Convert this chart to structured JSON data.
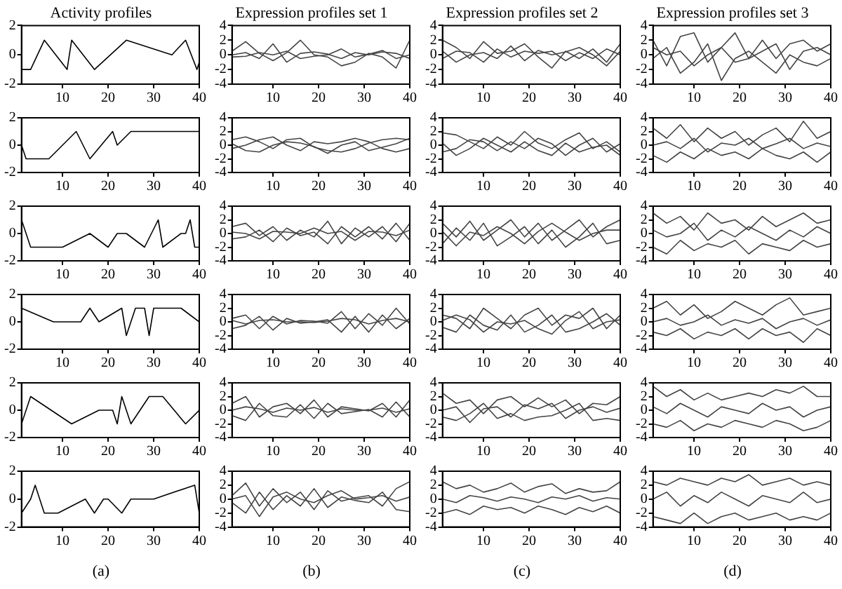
{
  "chart_data": [
    {
      "type": "line",
      "title": "Activity profiles",
      "x": [
        1,
        3,
        6,
        11,
        12,
        17,
        24,
        34,
        37,
        39.5,
        40
      ],
      "xlim": [
        1,
        40
      ],
      "xticks": [
        10,
        20,
        30,
        40
      ],
      "ylim": [
        -2,
        2
      ],
      "yticks": [
        -2,
        0,
        2
      ],
      "marker": "none",
      "line_style": "solid",
      "series": [
        {
          "color": "#000000",
          "values": [
            -1,
            -1,
            1,
            -1,
            1,
            -1,
            1,
            0,
            1,
            -1,
            -0.5
          ]
        }
      ]
    },
    {
      "type": "line",
      "title": "Expression profiles set 1",
      "x": [
        1,
        4,
        7,
        10,
        13,
        16,
        19,
        22,
        25,
        28,
        31,
        34,
        37,
        40
      ],
      "xlim": [
        1,
        40
      ],
      "xticks": [
        10,
        20,
        30,
        40
      ],
      "ylim": [
        -4,
        4
      ],
      "yticks": [
        -4,
        -2,
        0,
        2,
        4
      ],
      "marker": "none",
      "line_style": "solid",
      "series": [
        {
          "color": "#444444",
          "values": [
            0.5,
            1.8,
            0.2,
            -0.8,
            0.3,
            2,
            0,
            -0.3,
            -1.5,
            -1,
            0.2,
            -0.3,
            -1.8,
            2
          ]
        },
        {
          "color": "#444444",
          "values": [
            0,
            0.3,
            -0.5,
            1.5,
            -1,
            0.2,
            0.4,
            0.1,
            -0.5,
            0.3,
            0,
            0.4,
            0.2,
            -0.5
          ]
        },
        {
          "color": "#444444",
          "values": [
            -0.3,
            -0.2,
            0.3,
            0,
            0.5,
            -0.5,
            -0.2,
            0,
            0.8,
            -0.3,
            0.1,
            0.6,
            -0.5,
            0
          ]
        }
      ]
    },
    {
      "type": "line",
      "title": "Expression profiles set 2",
      "x": [
        1,
        4,
        7,
        10,
        13,
        16,
        19,
        22,
        25,
        28,
        31,
        34,
        37,
        40
      ],
      "xlim": [
        1,
        40
      ],
      "xticks": [
        10,
        20,
        30,
        40
      ],
      "ylim": [
        -4,
        4
      ],
      "yticks": [
        -4,
        -2,
        0,
        2,
        4
      ],
      "marker": "none",
      "line_style": "solid",
      "series": [
        {
          "color": "#444444",
          "values": [
            2,
            1,
            -0.5,
            1.8,
            0.2,
            0.5,
            1.5,
            -0.3,
            -1.8,
            0.5,
            -0.5,
            0.8,
            -1,
            1.5
          ]
        },
        {
          "color": "#444444",
          "values": [
            -0.5,
            0.5,
            0.3,
            -1,
            0.8,
            -0.3,
            0.5,
            0.2,
            0.5,
            -0.8,
            0.3,
            -0.5,
            0.8,
            0
          ]
        },
        {
          "color": "#444444",
          "values": [
            0.5,
            -1,
            0,
            0.3,
            -0.5,
            1.2,
            -0.8,
            0.6,
            0,
            0.4,
            1,
            0,
            -1.5,
            0.5
          ]
        }
      ]
    },
    {
      "type": "line",
      "title": "Expression profiles set 3",
      "x": [
        1,
        4,
        7,
        10,
        13,
        16,
        19,
        22,
        25,
        28,
        31,
        34,
        37,
        40
      ],
      "xlim": [
        1,
        40
      ],
      "xticks": [
        10,
        20,
        30,
        40
      ],
      "ylim": [
        -4,
        4
      ],
      "yticks": [
        -4,
        -2,
        0,
        2,
        4
      ],
      "marker": "none",
      "line_style": "solid",
      "series": [
        {
          "color": "#444444",
          "values": [
            2,
            -1.5,
            2.5,
            3,
            -1,
            1,
            3,
            -0.5,
            2,
            -0.5,
            1.5,
            2,
            0.5,
            1.5
          ]
        },
        {
          "color": "#444444",
          "values": [
            -0.5,
            1,
            -2.5,
            -1,
            1.5,
            -3.5,
            -0.5,
            0.5,
            -1,
            -2.5,
            0,
            -1,
            -1.5,
            -0.5
          ]
        },
        {
          "color": "#444444",
          "values": [
            1,
            0,
            0.5,
            -1.5,
            0,
            1,
            -1,
            -0.5,
            0.5,
            1.5,
            -2,
            0.5,
            1,
            0
          ]
        }
      ]
    },
    {
      "type": "line",
      "x": [
        1,
        2,
        7,
        13,
        16,
        21,
        22,
        25,
        40
      ],
      "xlim": [
        1,
        40
      ],
      "xticks": [
        10,
        20,
        30,
        40
      ],
      "ylim": [
        -2,
        2
      ],
      "yticks": [
        -2,
        0,
        2
      ],
      "marker": "none",
      "line_style": "solid",
      "series": [
        {
          "color": "#000000",
          "values": [
            0,
            -1,
            -1,
            1,
            -1,
            1,
            0,
            1,
            1
          ]
        }
      ]
    },
    {
      "type": "line",
      "x": [
        1,
        4,
        7,
        10,
        13,
        16,
        19,
        22,
        25,
        28,
        31,
        34,
        37,
        40
      ],
      "xlim": [
        1,
        40
      ],
      "xticks": [
        10,
        20,
        30,
        40
      ],
      "ylim": [
        -4,
        4
      ],
      "yticks": [
        -4,
        -2,
        0,
        2,
        4
      ],
      "marker": "none",
      "line_style": "solid",
      "series": [
        {
          "color": "#444444",
          "values": [
            0.8,
            1.2,
            0.5,
            -0.5,
            0.8,
            1,
            -0.3,
            -0.8,
            -1,
            -0.5,
            0.3,
            0.8,
            1,
            0.8
          ]
        },
        {
          "color": "#444444",
          "values": [
            -0.5,
            0,
            0.8,
            1.2,
            0,
            -0.8,
            0.5,
            0.2,
            0.5,
            1,
            0.5,
            -0.5,
            -1,
            -0.5
          ]
        },
        {
          "color": "#444444",
          "values": [
            0.2,
            -0.8,
            -1,
            0,
            0.5,
            0.3,
            -0.2,
            -1.2,
            0,
            0.5,
            -0.8,
            -0.3,
            0.2,
            1
          ]
        }
      ]
    },
    {
      "type": "line",
      "x": [
        1,
        4,
        7,
        10,
        13,
        16,
        19,
        22,
        25,
        28,
        31,
        34,
        37,
        40
      ],
      "xlim": [
        1,
        40
      ],
      "xticks": [
        10,
        20,
        30,
        40
      ],
      "ylim": [
        -4,
        4
      ],
      "yticks": [
        -4,
        -2,
        0,
        2,
        4
      ],
      "marker": "none",
      "line_style": "solid",
      "series": [
        {
          "color": "#444444",
          "values": [
            1.8,
            1.5,
            0.5,
            -0.5,
            1.2,
            0,
            2,
            0.3,
            -0.5,
            0.8,
            1.8,
            -0.5,
            0.5,
            -1
          ]
        },
        {
          "color": "#444444",
          "values": [
            -1,
            -0.5,
            0.8,
            0.5,
            -0.8,
            0.5,
            -0.5,
            1,
            0.2,
            -1.5,
            0,
            1,
            -1,
            0.2
          ]
        },
        {
          "color": "#444444",
          "values": [
            0.3,
            -1.5,
            -0.5,
            1,
            0,
            -1,
            0.5,
            -0.8,
            -1.5,
            0.3,
            -1,
            -0.3,
            0,
            -1.5
          ]
        }
      ]
    },
    {
      "type": "line",
      "x": [
        1,
        4,
        7,
        10,
        13,
        16,
        19,
        22,
        25,
        28,
        31,
        34,
        37,
        40
      ],
      "xlim": [
        1,
        40
      ],
      "xticks": [
        10,
        20,
        30,
        40
      ],
      "ylim": [
        -4,
        4
      ],
      "yticks": [
        -4,
        -2,
        0,
        2,
        4
      ],
      "marker": "none",
      "line_style": "solid",
      "series": [
        {
          "color": "#444444",
          "values": [
            2.5,
            1,
            3,
            0.5,
            2.5,
            1,
            2,
            0,
            1.5,
            2.5,
            0.5,
            3.5,
            1,
            2
          ]
        },
        {
          "color": "#444444",
          "values": [
            -1.5,
            -2.5,
            -1,
            -2,
            -0.5,
            -1.5,
            -1,
            -2,
            -0.5,
            -1.5,
            -2,
            -1,
            -2.5,
            -1
          ]
        },
        {
          "color": "#444444",
          "values": [
            0,
            0.5,
            -0.5,
            1,
            -1,
            0.3,
            0,
            1,
            -0.5,
            0.2,
            1,
            -0.5,
            0.3,
            -0.2
          ]
        }
      ]
    },
    {
      "type": "line",
      "x": [
        1,
        3,
        10,
        16,
        20,
        22,
        24,
        28,
        31,
        32,
        36,
        37,
        38,
        39,
        40
      ],
      "xlim": [
        1,
        40
      ],
      "xticks": [
        10,
        20,
        30,
        40
      ],
      "ylim": [
        -2,
        2
      ],
      "yticks": [
        -2,
        0,
        2
      ],
      "marker": "none",
      "line_style": "solid",
      "series": [
        {
          "color": "#000000",
          "values": [
            1,
            -1,
            -1,
            0,
            -1,
            0,
            0,
            -1,
            1,
            -1,
            0,
            0,
            1,
            -1,
            -1
          ]
        }
      ]
    },
    {
      "type": "line",
      "x": [
        1,
        4,
        7,
        10,
        13,
        16,
        19,
        22,
        25,
        28,
        31,
        34,
        37,
        40
      ],
      "xlim": [
        1,
        40
      ],
      "xticks": [
        10,
        20,
        30,
        40
      ],
      "ylim": [
        -4,
        4
      ],
      "yticks": [
        -4,
        -2,
        0,
        2,
        4
      ],
      "marker": "none",
      "line_style": "solid",
      "series": [
        {
          "color": "#444444",
          "values": [
            1,
            1.5,
            -0.3,
            1,
            -1,
            0.5,
            -0.5,
            1.8,
            -1.5,
            0.8,
            -0.5,
            1,
            -1.2,
            1.5
          ]
        },
        {
          "color": "#444444",
          "values": [
            -0.8,
            -0.5,
            0.5,
            -1.2,
            0.8,
            -0.3,
            0.2,
            -1.5,
            1,
            -0.5,
            1,
            -0.8,
            1.5,
            -1
          ]
        },
        {
          "color": "#444444",
          "values": [
            0.2,
            0,
            -0.8,
            0.3,
            0.2,
            0,
            0.8,
            0,
            0.3,
            -1,
            0.3,
            0.2,
            -0.3,
            0.5
          ]
        }
      ]
    },
    {
      "type": "line",
      "x": [
        1,
        4,
        7,
        10,
        13,
        16,
        19,
        22,
        25,
        28,
        31,
        34,
        37,
        40
      ],
      "xlim": [
        1,
        40
      ],
      "xticks": [
        10,
        20,
        30,
        40
      ],
      "ylim": [
        -4,
        4
      ],
      "yticks": [
        -4,
        -2,
        0,
        2,
        4
      ],
      "marker": "none",
      "line_style": "solid",
      "series": [
        {
          "color": "#444444",
          "values": [
            1.5,
            -0.5,
            1.8,
            -1,
            0.5,
            2,
            -0.5,
            1.5,
            -1,
            0.5,
            2,
            -0.5,
            1,
            2
          ]
        },
        {
          "color": "#444444",
          "values": [
            -1.5,
            0.8,
            -1,
            1.5,
            -1.8,
            -0.5,
            1,
            -1.5,
            0.5,
            -2,
            -0.5,
            1.5,
            -1.5,
            -1
          ]
        },
        {
          "color": "#444444",
          "values": [
            0.3,
            -1.8,
            0.2,
            -0.3,
            1,
            0,
            -1.5,
            0.3,
            1.5,
            0.2,
            -1,
            0,
            0.5,
            0.5
          ]
        }
      ]
    },
    {
      "type": "line",
      "x": [
        1,
        4,
        7,
        10,
        13,
        16,
        19,
        22,
        25,
        28,
        31,
        34,
        37,
        40
      ],
      "xlim": [
        1,
        40
      ],
      "xticks": [
        10,
        20,
        30,
        40
      ],
      "ylim": [
        -4,
        4
      ],
      "yticks": [
        -4,
        -2,
        0,
        2,
        4
      ],
      "marker": "none",
      "line_style": "solid",
      "series": [
        {
          "color": "#444444",
          "values": [
            3,
            1.5,
            2.5,
            0.5,
            3,
            1.5,
            2,
            0.5,
            2.5,
            1,
            2,
            3,
            1.5,
            2
          ]
        },
        {
          "color": "#444444",
          "values": [
            -2,
            -3,
            -1,
            -2.5,
            -1.5,
            -2,
            -1,
            -3,
            -1.5,
            -2,
            -2.5,
            -1,
            -2,
            -1.5
          ]
        },
        {
          "color": "#444444",
          "values": [
            0.5,
            -0.5,
            0,
            1.5,
            -1,
            0.5,
            -0.5,
            1,
            0,
            -1,
            0.5,
            -0.5,
            1,
            0
          ]
        }
      ]
    },
    {
      "type": "line",
      "x": [
        1,
        8,
        14,
        16,
        18,
        23,
        24,
        26,
        28,
        29,
        30,
        36,
        40
      ],
      "xlim": [
        1,
        40
      ],
      "xticks": [
        10,
        20,
        30,
        40
      ],
      "ylim": [
        -2,
        2
      ],
      "yticks": [
        -2,
        0,
        2
      ],
      "marker": "none",
      "line_style": "solid",
      "series": [
        {
          "color": "#000000",
          "values": [
            1,
            0,
            0,
            1,
            0,
            1,
            -1,
            1,
            1,
            -1,
            1,
            1,
            0
          ]
        }
      ]
    },
    {
      "type": "line",
      "x": [
        1,
        4,
        7,
        10,
        13,
        16,
        19,
        22,
        25,
        28,
        31,
        34,
        37,
        40
      ],
      "xlim": [
        1,
        40
      ],
      "xticks": [
        10,
        20,
        30,
        40
      ],
      "ylim": [
        -4,
        4
      ],
      "yticks": [
        -4,
        -2,
        0,
        2,
        4
      ],
      "marker": "none",
      "line_style": "solid",
      "series": [
        {
          "color": "#444444",
          "values": [
            0.5,
            1,
            -1,
            0.8,
            -0.3,
            0.2,
            0.1,
            -0.2,
            1.5,
            -1,
            1.2,
            -0.5,
            2,
            -0.3
          ]
        },
        {
          "color": "#444444",
          "values": [
            -1,
            -0.5,
            0.8,
            -1.2,
            0.5,
            -0.2,
            0,
            0.3,
            -1.5,
            0.8,
            -1.5,
            1,
            -1,
            0.5
          ]
        },
        {
          "color": "#444444",
          "values": [
            0.2,
            -0.3,
            0.2,
            0.3,
            0,
            0,
            -0.1,
            0.1,
            0.5,
            0.3,
            -0.3,
            0.2,
            0.5,
            0
          ]
        }
      ]
    },
    {
      "type": "line",
      "x": [
        1,
        4,
        7,
        10,
        13,
        16,
        19,
        22,
        25,
        28,
        31,
        34,
        37,
        40
      ],
      "xlim": [
        1,
        40
      ],
      "xticks": [
        10,
        20,
        30,
        40
      ],
      "ylim": [
        -4,
        4
      ],
      "yticks": [
        -4,
        -2,
        0,
        2,
        4
      ],
      "marker": "none",
      "line_style": "solid",
      "series": [
        {
          "color": "#444444",
          "values": [
            1,
            0.5,
            -1,
            2,
            0.5,
            -1,
            1,
            2,
            -0.5,
            1,
            0.5,
            2,
            -1,
            1
          ]
        },
        {
          "color": "#444444",
          "values": [
            -0.8,
            -1.5,
            1,
            -0.5,
            -1.2,
            1,
            -1.5,
            -0.5,
            1,
            -1.5,
            -1,
            0,
            1.2,
            -0.5
          ]
        },
        {
          "color": "#444444",
          "values": [
            0.2,
            1,
            0.3,
            -1.5,
            0,
            -0.3,
            0.2,
            -1,
            -1.8,
            0.2,
            1.5,
            -1,
            0,
            0.3
          ]
        }
      ]
    },
    {
      "type": "line",
      "x": [
        1,
        4,
        7,
        10,
        13,
        16,
        19,
        22,
        25,
        28,
        31,
        34,
        37,
        40
      ],
      "xlim": [
        1,
        40
      ],
      "xticks": [
        10,
        20,
        30,
        40
      ],
      "ylim": [
        -4,
        4
      ],
      "yticks": [
        -4,
        -2,
        0,
        2,
        4
      ],
      "marker": "none",
      "line_style": "solid",
      "series": [
        {
          "color": "#444444",
          "values": [
            2,
            3,
            1,
            2.5,
            0.5,
            1.5,
            3,
            2,
            1,
            2.5,
            3.5,
            1,
            1.5,
            2
          ]
        },
        {
          "color": "#444444",
          "values": [
            -1.5,
            -2,
            -1,
            -2.5,
            -1.5,
            -2,
            -1,
            -2.5,
            -1,
            -2,
            -1.5,
            -3,
            -1,
            -2
          ]
        },
        {
          "color": "#444444",
          "values": [
            0,
            0.5,
            -0.5,
            0,
            1,
            -0.5,
            0.3,
            -0.2,
            0.5,
            -1,
            0,
            0.5,
            -0.5,
            0.3
          ]
        }
      ]
    },
    {
      "type": "line",
      "x": [
        1,
        3,
        12,
        18,
        21,
        22,
        23,
        25,
        29,
        32,
        37,
        40
      ],
      "xlim": [
        1,
        40
      ],
      "xticks": [
        10,
        20,
        30,
        40
      ],
      "ylim": [
        -2,
        2
      ],
      "yticks": [
        -2,
        0,
        2
      ],
      "marker": "none",
      "line_style": "solid",
      "series": [
        {
          "color": "#000000",
          "values": [
            -1,
            1,
            -1,
            0,
            0,
            -1,
            1,
            -1,
            1,
            1,
            -1,
            0
          ]
        }
      ]
    },
    {
      "type": "line",
      "x": [
        1,
        4,
        7,
        10,
        13,
        16,
        19,
        22,
        25,
        28,
        31,
        34,
        37,
        40
      ],
      "xlim": [
        1,
        40
      ],
      "xticks": [
        10,
        20,
        30,
        40
      ],
      "ylim": [
        -4,
        4
      ],
      "yticks": [
        -4,
        -2,
        0,
        2,
        4
      ],
      "marker": "none",
      "line_style": "solid",
      "series": [
        {
          "color": "#444444",
          "values": [
            1,
            2,
            -1,
            0.5,
            1,
            -0.5,
            1.5,
            -1,
            0.5,
            0.2,
            -0.1,
            1,
            -1,
            1.5
          ]
        },
        {
          "color": "#444444",
          "values": [
            -0.8,
            -1.5,
            1,
            -0.8,
            -1,
            0.8,
            -1.2,
            1,
            -0.5,
            -0.2,
            0.1,
            -1,
            1.2,
            -1
          ]
        },
        {
          "color": "#444444",
          "values": [
            0,
            0.5,
            0.2,
            -0.3,
            0.3,
            0,
            0.4,
            -0.3,
            0.2,
            0,
            0,
            0.3,
            -0.3,
            0.2
          ]
        }
      ]
    },
    {
      "type": "line",
      "x": [
        1,
        4,
        7,
        10,
        13,
        16,
        19,
        22,
        25,
        28,
        31,
        34,
        37,
        40
      ],
      "xlim": [
        1,
        40
      ],
      "xticks": [
        10,
        20,
        30,
        40
      ],
      "ylim": [
        -4,
        4
      ],
      "yticks": [
        -4,
        -2,
        0,
        2,
        4
      ],
      "marker": "none",
      "line_style": "solid",
      "series": [
        {
          "color": "#444444",
          "values": [
            2.5,
            1,
            1.5,
            -0.5,
            1.5,
            2,
            0.5,
            1.8,
            0.5,
            1.5,
            -0.5,
            1,
            0.8,
            2
          ]
        },
        {
          "color": "#444444",
          "values": [
            -1,
            -1.5,
            -0.5,
            1,
            -1.2,
            -0.5,
            -1.5,
            -1,
            -0.8,
            0,
            1,
            -1.5,
            -1.2,
            -1.5
          ]
        },
        {
          "color": "#444444",
          "values": [
            0,
            0.5,
            -1.8,
            0.2,
            0.5,
            -1,
            0.8,
            0.2,
            1,
            -1.2,
            0,
            0.5,
            -0.3,
            0.3
          ]
        }
      ]
    },
    {
      "type": "line",
      "x": [
        1,
        4,
        7,
        10,
        13,
        16,
        19,
        22,
        25,
        28,
        31,
        34,
        37,
        40
      ],
      "xlim": [
        1,
        40
      ],
      "xticks": [
        10,
        20,
        30,
        40
      ],
      "ylim": [
        -4,
        4
      ],
      "yticks": [
        -4,
        -2,
        0,
        2,
        4
      ],
      "marker": "none",
      "line_style": "solid",
      "series": [
        {
          "color": "#444444",
          "values": [
            3.5,
            2,
            3,
            1.5,
            2.5,
            1.5,
            2,
            2.5,
            2,
            3,
            2.5,
            3.5,
            2,
            2
          ]
        },
        {
          "color": "#444444",
          "values": [
            -2,
            -2.5,
            -1.5,
            -3,
            -2,
            -2.5,
            -1.5,
            -2,
            -2.5,
            -1.5,
            -2,
            -3,
            -2.5,
            -1.5
          ]
        },
        {
          "color": "#444444",
          "values": [
            0.5,
            -0.5,
            1,
            0,
            -1,
            0.5,
            0,
            -0.5,
            1,
            0,
            0.5,
            -1,
            0,
            0.5
          ]
        }
      ]
    },
    {
      "type": "line",
      "annotations": [
        "(a)"
      ],
      "x": [
        1,
        3,
        4,
        6,
        9,
        15,
        17,
        19,
        20,
        23,
        25,
        30,
        39,
        40
      ],
      "xlim": [
        1,
        40
      ],
      "xticks": [
        10,
        20,
        30,
        40
      ],
      "ylim": [
        -2,
        2
      ],
      "yticks": [
        -2,
        0,
        2
      ],
      "marker": "none",
      "line_style": "solid",
      "series": [
        {
          "color": "#000000",
          "values": [
            -1,
            0,
            1,
            -1,
            -1,
            0,
            -1,
            0,
            0,
            -1,
            0,
            0,
            1,
            -1
          ]
        }
      ]
    },
    {
      "type": "line",
      "annotations": [
        "(b)"
      ],
      "x": [
        1,
        4,
        7,
        10,
        13,
        16,
        19,
        22,
        25,
        28,
        31,
        34,
        37,
        40
      ],
      "xlim": [
        1,
        40
      ],
      "xticks": [
        10,
        20,
        30,
        40
      ],
      "ylim": [
        -4,
        4
      ],
      "yticks": [
        -4,
        -2,
        0,
        2,
        4
      ],
      "marker": "none",
      "line_style": "solid",
      "series": [
        {
          "color": "#444444",
          "values": [
            0.5,
            2.3,
            -1,
            1.5,
            -0.5,
            1,
            -1.5,
            1.2,
            -0.3,
            0.2,
            0.5,
            -1,
            1.5,
            2.5
          ]
        },
        {
          "color": "#444444",
          "values": [
            -0.5,
            -2,
            1,
            -1.5,
            0.5,
            -1,
            1.5,
            -1.2,
            0.3,
            -0.2,
            -0.5,
            1,
            -1.5,
            -1.8
          ]
        },
        {
          "color": "#444444",
          "values": [
            0,
            0.5,
            -2.5,
            0.3,
            1,
            0,
            -0.5,
            0.5,
            1.2,
            0,
            0.2,
            0.5,
            -0.3,
            0.3
          ]
        }
      ]
    },
    {
      "type": "line",
      "annotations": [
        "(c)"
      ],
      "x": [
        1,
        4,
        7,
        10,
        13,
        16,
        19,
        22,
        25,
        28,
        31,
        34,
        37,
        40
      ],
      "xlim": [
        1,
        40
      ],
      "xticks": [
        10,
        20,
        30,
        40
      ],
      "ylim": [
        -4,
        4
      ],
      "yticks": [
        -4,
        -2,
        0,
        2,
        4
      ],
      "marker": "none",
      "line_style": "solid",
      "series": [
        {
          "color": "#444444",
          "values": [
            2.5,
            1.5,
            2,
            1,
            1.5,
            2.3,
            1,
            1.8,
            2.2,
            0.8,
            1.5,
            1,
            1.2,
            2.5
          ]
        },
        {
          "color": "#444444",
          "values": [
            -2,
            -1.5,
            -2.2,
            -1,
            -1.5,
            -1.2,
            -2,
            -1,
            -1.5,
            -2.2,
            -1.2,
            -1.8,
            -1,
            -2
          ]
        },
        {
          "color": "#444444",
          "values": [
            0,
            -0.5,
            0.5,
            0.2,
            -0.3,
            0.3,
            0,
            -0.5,
            0.3,
            0,
            0.5,
            -0.3,
            0.2,
            0
          ]
        }
      ]
    },
    {
      "type": "line",
      "annotations": [
        "(d)"
      ],
      "x": [
        1,
        4,
        7,
        10,
        13,
        16,
        19,
        22,
        25,
        28,
        31,
        34,
        37,
        40
      ],
      "xlim": [
        1,
        40
      ],
      "xticks": [
        10,
        20,
        30,
        40
      ],
      "ylim": [
        -4,
        4
      ],
      "yticks": [
        -4,
        -2,
        0,
        2,
        4
      ],
      "marker": "none",
      "line_style": "solid",
      "series": [
        {
          "color": "#444444",
          "values": [
            2.5,
            2,
            3,
            2.5,
            2,
            3,
            2.5,
            3.5,
            2,
            2.5,
            3,
            2,
            2.5,
            2
          ]
        },
        {
          "color": "#444444",
          "values": [
            -2.5,
            -3,
            -3.5,
            -2,
            -3.5,
            -2.5,
            -2,
            -3,
            -2.5,
            -2,
            -3,
            -2.5,
            -3,
            -2
          ]
        },
        {
          "color": "#444444",
          "values": [
            0,
            1,
            -1,
            0.5,
            -0.5,
            1,
            0,
            -1,
            0.5,
            0,
            -0.5,
            1,
            -0.5,
            0
          ]
        }
      ]
    }
  ]
}
